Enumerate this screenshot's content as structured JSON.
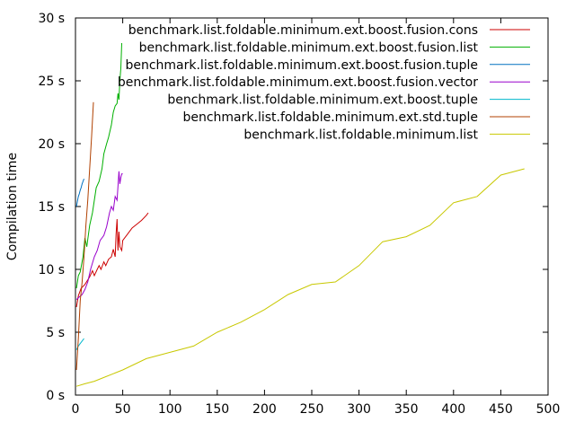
{
  "chart_data": {
    "type": "line",
    "title": "",
    "xlabel": "",
    "ylabel": "Compilation time",
    "xlim": [
      0,
      500
    ],
    "ylim": [
      0,
      30
    ],
    "x_ticks": [
      "0",
      "50",
      "100",
      "150",
      "200",
      "250",
      "300",
      "350",
      "400",
      "450",
      "500"
    ],
    "y_ticks": [
      "0 s",
      "5 s",
      "10 s",
      "15 s",
      "20 s",
      "25 s",
      "30 s"
    ],
    "grid": false,
    "legend_position": "top-right",
    "series": [
      {
        "name": "benchmark.list.foldable.minimum.ext.boost.fusion.cons",
        "color": "#cc0000",
        "x": [
          1,
          3,
          6,
          10,
          15,
          18,
          20,
          23,
          25,
          27,
          30,
          32,
          35,
          38,
          40,
          42,
          43,
          44,
          45,
          46,
          47,
          49,
          50,
          55,
          60,
          65,
          70,
          75,
          77
        ],
        "y": [
          7.0,
          7.9,
          8.5,
          8.8,
          9.4,
          9.9,
          9.5,
          10.0,
          10.3,
          10.0,
          10.6,
          10.3,
          10.8,
          11.0,
          11.6,
          11.0,
          12.8,
          14.0,
          11.5,
          13.0,
          11.8,
          11.5,
          12.3,
          12.8,
          13.3,
          13.6,
          13.9,
          14.3,
          14.5
        ]
      },
      {
        "name": "benchmark.list.foldable.minimum.ext.boost.fusion.list",
        "color": "#00b000",
        "x": [
          1,
          3,
          5,
          8,
          10,
          12,
          15,
          18,
          20,
          22,
          25,
          28,
          30,
          33,
          35,
          38,
          40,
          42,
          44,
          45,
          46,
          47,
          48,
          49
        ],
        "y": [
          8.5,
          9.5,
          9.8,
          11.0,
          12.5,
          11.8,
          13.5,
          14.5,
          15.5,
          16.5,
          17.0,
          18.0,
          19.2,
          20.0,
          20.5,
          21.5,
          22.5,
          23.0,
          23.2,
          24.0,
          23.5,
          25.0,
          26.0,
          28.0
        ]
      },
      {
        "name": "benchmark.list.foldable.minimum.ext.boost.fusion.tuple",
        "color": "#0070c0",
        "x": [
          1,
          2,
          3,
          4,
          5,
          6,
          7,
          8,
          9
        ],
        "y": [
          15.0,
          15.4,
          15.8,
          16.0,
          16.3,
          16.5,
          16.8,
          17.0,
          17.2
        ]
      },
      {
        "name": "benchmark.list.foldable.minimum.ext.boost.fusion.vector",
        "color": "#9900cc",
        "x": [
          1,
          4,
          7,
          10,
          13,
          16,
          20,
          23,
          26,
          30,
          33,
          36,
          38,
          40,
          42,
          44,
          46,
          47,
          48,
          49,
          50
        ],
        "y": [
          7.6,
          7.8,
          8.0,
          8.4,
          9.0,
          10.0,
          11.0,
          11.5,
          12.3,
          12.7,
          13.4,
          14.5,
          15.0,
          14.7,
          15.8,
          15.5,
          17.8,
          16.8,
          17.3,
          17.6,
          17.6
        ]
      },
      {
        "name": "benchmark.list.foldable.minimum.ext.boost.tuple",
        "color": "#00b7cc",
        "x": [
          1,
          3,
          5,
          7,
          9
        ],
        "y": [
          3.6,
          3.9,
          4.1,
          4.3,
          4.5
        ]
      },
      {
        "name": "benchmark.list.foldable.minimum.ext.std.tuple",
        "color": "#b04000",
        "x": [
          1,
          3,
          5,
          7,
          9,
          11,
          13,
          15,
          17,
          19
        ],
        "y": [
          2.0,
          4.5,
          7.5,
          9.0,
          11.0,
          13.5,
          15.5,
          18.0,
          20.5,
          23.3
        ]
      },
      {
        "name": "benchmark.list.foldable.minimum.list",
        "color": "#c8c800",
        "x": [
          1,
          10,
          20,
          30,
          40,
          50,
          75,
          100,
          125,
          150,
          175,
          200,
          225,
          250,
          275,
          300,
          325,
          350,
          375,
          400,
          425,
          450,
          475
        ],
        "y": [
          0.7,
          0.9,
          1.1,
          1.4,
          1.7,
          2.0,
          2.9,
          3.4,
          3.9,
          5.0,
          5.8,
          6.8,
          8.0,
          8.8,
          9.0,
          10.3,
          12.2,
          12.6,
          13.5,
          15.3,
          15.8,
          17.5,
          18.0
        ]
      }
    ]
  }
}
